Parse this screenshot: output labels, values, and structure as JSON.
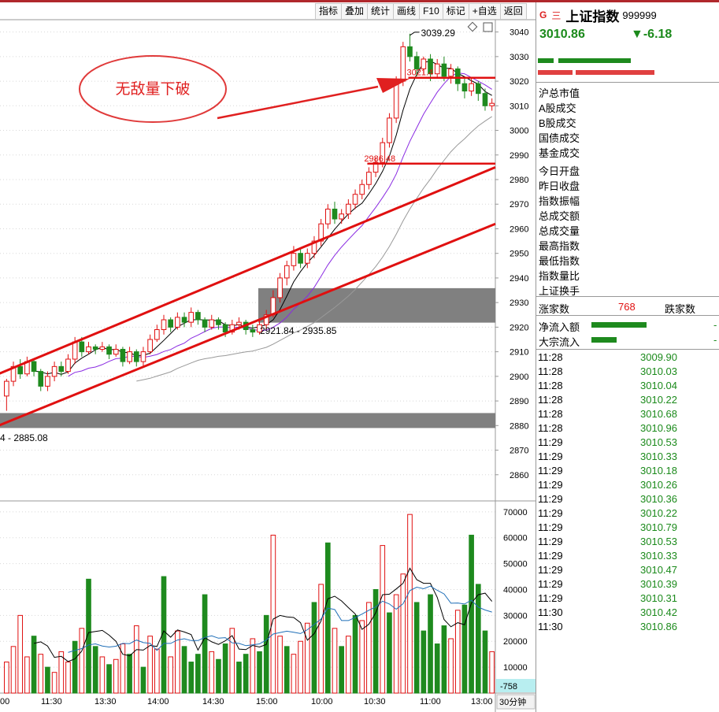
{
  "toolbar": {
    "indicator": "指标",
    "overlay": "叠加",
    "stats": "统计",
    "draw": "画线",
    "f10": "F10",
    "mark": "标记",
    "add_watchlist": "+自选",
    "back": "返回"
  },
  "colors": {
    "up": "#e01010",
    "down": "#1e8a1e",
    "line": "#e01010",
    "zone": "#808080"
  },
  "panel": {
    "g_icon": "G",
    "menu_icon": "三",
    "name": "上证指数",
    "code": "999999",
    "price": "3010.86",
    "change": "▼-6.18",
    "labels": [
      "沪总市值",
      "A股成交",
      "B股成交",
      "国债成交",
      "基金成交",
      "今日开盘",
      "昨日收盘",
      "指数振幅",
      "总成交额",
      "总成交量",
      "最高指数",
      "最低指数",
      "指数量比",
      "上证换手"
    ],
    "rise_label": "涨家数",
    "rise_value": "768",
    "fall_label": "跌家数",
    "net_inflow_label": "净流入额",
    "net_inflow_value": "-",
    "block_flow_label": "大宗流入",
    "block_flow_value": "-",
    "ticks": [
      {
        "time": "11:28",
        "price": "3009.90"
      },
      {
        "time": "11:28",
        "price": "3010.03"
      },
      {
        "time": "11:28",
        "price": "3010.04"
      },
      {
        "time": "11:28",
        "price": "3010.22"
      },
      {
        "time": "11:28",
        "price": "3010.68"
      },
      {
        "time": "11:28",
        "price": "3010.96"
      },
      {
        "time": "11:29",
        "price": "3010.53"
      },
      {
        "time": "11:29",
        "price": "3010.33"
      },
      {
        "time": "11:29",
        "price": "3010.18"
      },
      {
        "time": "11:29",
        "price": "3010.26"
      },
      {
        "time": "11:29",
        "price": "3010.36"
      },
      {
        "time": "11:29",
        "price": "3010.22"
      },
      {
        "time": "11:29",
        "price": "3010.79"
      },
      {
        "time": "11:29",
        "price": "3010.53"
      },
      {
        "time": "11:29",
        "price": "3010.33"
      },
      {
        "time": "11:29",
        "price": "3010.47"
      },
      {
        "time": "11:29",
        "price": "3010.39"
      },
      {
        "time": "11:29",
        "price": "3010.31"
      },
      {
        "time": "11:30",
        "price": "3010.42"
      },
      {
        "time": "11:30",
        "price": "3010.86"
      }
    ]
  },
  "chart_data": {
    "type": "candlestick",
    "period_label": "30分钟",
    "price_axis": {
      "ylim": [
        2850,
        3045
      ],
      "ticks": [
        2860,
        2870,
        2880,
        2890,
        2900,
        2910,
        2920,
        2930,
        2940,
        2950,
        2960,
        2970,
        2980,
        2990,
        3000,
        3010,
        3020,
        3030,
        3040
      ]
    },
    "volume_axis": {
      "ylim": [
        0,
        73000
      ],
      "ticks": [
        10000,
        20000,
        30000,
        40000,
        50000,
        60000,
        70000
      ],
      "readout": "-758"
    },
    "x_labels": [
      "00",
      "11:30",
      "13:30",
      "14:00",
      "14:30",
      "15:00",
      "10:00",
      "10:30",
      "11:00",
      "13:00"
    ],
    "annotations": {
      "callout": "无敌量下破",
      "high_label": "3039.29",
      "zone_upper_label": "2921.84 - 2935.85",
      "zone_lower_label": "4 - 2885.08",
      "level_3021": "3021.4",
      "level_2986": "2986.48"
    },
    "zones": [
      [
        2921.84,
        2935.85
      ],
      [
        2879,
        2885.08
      ]
    ],
    "levels": [
      3021.4,
      2986.48
    ],
    "channel_upper": [
      [
        0,
        2901
      ],
      [
        72,
        2985
      ]
    ],
    "channel_middle": [
      [
        0,
        2880
      ],
      [
        72,
        2962
      ]
    ],
    "candles": [
      [
        2892,
        2898,
        2886,
        2899
      ],
      [
        2898,
        2904,
        2896,
        2906
      ],
      [
        2904,
        2901,
        2899,
        2907
      ],
      [
        2901,
        2906,
        2900,
        2908
      ],
      [
        2906,
        2902,
        2900,
        2907
      ],
      [
        2902,
        2896,
        2894,
        2903
      ],
      [
        2896,
        2900,
        2894,
        2902
      ],
      [
        2900,
        2904,
        2898,
        2906
      ],
      [
        2904,
        2902,
        2900,
        2906
      ],
      [
        2902,
        2907,
        2901,
        2909
      ],
      [
        2907,
        2914,
        2905,
        2916
      ],
      [
        2914,
        2910,
        2908,
        2916
      ],
      [
        2910,
        2912,
        2909,
        2914
      ],
      [
        2912,
        2911,
        2909,
        2913
      ],
      [
        2911,
        2912,
        2910,
        2914
      ],
      [
        2912,
        2909,
        2907,
        2913
      ],
      [
        2909,
        2911,
        2908,
        2913
      ],
      [
        2911,
        2906,
        2904,
        2912
      ],
      [
        2906,
        2910,
        2905,
        2912
      ],
      [
        2910,
        2906,
        2904,
        2911
      ],
      [
        2906,
        2910,
        2904,
        2912
      ],
      [
        2910,
        2915,
        2909,
        2917
      ],
      [
        2915,
        2919,
        2914,
        2921
      ],
      [
        2919,
        2923,
        2917,
        2925
      ],
      [
        2923,
        2920,
        2918,
        2924
      ],
      [
        2920,
        2924,
        2919,
        2926
      ],
      [
        2924,
        2922,
        2920,
        2926
      ],
      [
        2922,
        2926,
        2920,
        2928
      ],
      [
        2926,
        2923,
        2921,
        2927
      ],
      [
        2923,
        2920,
        2918,
        2924
      ],
      [
        2920,
        2923,
        2919,
        2925
      ],
      [
        2923,
        2921,
        2919,
        2924
      ],
      [
        2921,
        2918,
        2916,
        2922
      ],
      [
        2918,
        2921,
        2917,
        2923
      ],
      [
        2921,
        2922,
        2919,
        2924
      ],
      [
        2922,
        2919,
        2917,
        2923
      ],
      [
        2919,
        2918,
        2916,
        2921
      ],
      [
        2918,
        2921,
        2917,
        2923
      ],
      [
        2921,
        2925,
        2919,
        2927
      ],
      [
        2925,
        2932,
        2924,
        2935
      ],
      [
        2932,
        2940,
        2930,
        2942
      ],
      [
        2940,
        2945,
        2937,
        2947
      ],
      [
        2945,
        2950,
        2943,
        2953
      ],
      [
        2950,
        2946,
        2944,
        2952
      ],
      [
        2946,
        2950,
        2944,
        2952
      ],
      [
        2950,
        2955,
        2948,
        2957
      ],
      [
        2955,
        2962,
        2953,
        2964
      ],
      [
        2962,
        2968,
        2960,
        2970
      ],
      [
        2968,
        2964,
        2962,
        2971
      ],
      [
        2964,
        2966,
        2962,
        2968
      ],
      [
        2966,
        2970,
        2964,
        2972
      ],
      [
        2970,
        2974,
        2968,
        2976
      ],
      [
        2974,
        2978,
        2972,
        2980
      ],
      [
        2978,
        2983,
        2976,
        2985
      ],
      [
        2983,
        2987,
        2981,
        2989
      ],
      [
        2987,
        2995,
        2985,
        2997
      ],
      [
        2995,
        3005,
        2993,
        3007
      ],
      [
        3005,
        3020,
        3003,
        3022
      ],
      [
        3020,
        3034,
        3018,
        3036
      ],
      [
        3034,
        3030,
        3028,
        3039.29
      ],
      [
        3030,
        3025,
        3022,
        3032
      ],
      [
        3025,
        3029,
        3023,
        3030
      ],
      [
        3029,
        3023,
        3020,
        3031
      ],
      [
        3023,
        3027,
        3021,
        3029
      ],
      [
        3027,
        3022,
        3020,
        3030
      ],
      [
        3022,
        3025,
        3019,
        3027
      ],
      [
        3025,
        3019,
        3016,
        3026
      ],
      [
        3019,
        3016,
        3013,
        3021
      ],
      [
        3016,
        3019,
        3014,
        3021
      ],
      [
        3019,
        3015,
        3012,
        3020
      ],
      [
        3015,
        3010,
        3008,
        3017
      ],
      [
        3010,
        3011,
        3008,
        3013
      ]
    ],
    "volumes": [
      [
        12000,
        "up"
      ],
      [
        18000,
        "up"
      ],
      [
        30000,
        "up"
      ],
      [
        14000,
        "up"
      ],
      [
        22000,
        "down"
      ],
      [
        15000,
        "up"
      ],
      [
        10000,
        "down"
      ],
      [
        8000,
        "up"
      ],
      [
        16000,
        "up"
      ],
      [
        12000,
        "up"
      ],
      [
        20000,
        "down"
      ],
      [
        25000,
        "up"
      ],
      [
        44000,
        "down"
      ],
      [
        18000,
        "down"
      ],
      [
        14000,
        "up"
      ],
      [
        11000,
        "down"
      ],
      [
        13000,
        "up"
      ],
      [
        19000,
        "up"
      ],
      [
        15000,
        "down"
      ],
      [
        26000,
        "up"
      ],
      [
        10000,
        "down"
      ],
      [
        22000,
        "up"
      ],
      [
        17000,
        "up"
      ],
      [
        45000,
        "down"
      ],
      [
        14000,
        "up"
      ],
      [
        24000,
        "up"
      ],
      [
        18000,
        "down"
      ],
      [
        12000,
        "down"
      ],
      [
        15000,
        "down"
      ],
      [
        38000,
        "down"
      ],
      [
        16000,
        "up"
      ],
      [
        13000,
        "down"
      ],
      [
        19000,
        "down"
      ],
      [
        25000,
        "up"
      ],
      [
        12000,
        "down"
      ],
      [
        15000,
        "down"
      ],
      [
        21000,
        "up"
      ],
      [
        16000,
        "down"
      ],
      [
        30000,
        "down"
      ],
      [
        61000,
        "up"
      ],
      [
        22000,
        "up"
      ],
      [
        18000,
        "down"
      ],
      [
        15000,
        "up"
      ],
      [
        20000,
        "up"
      ],
      [
        27000,
        "up"
      ],
      [
        35000,
        "down"
      ],
      [
        42000,
        "up"
      ],
      [
        58000,
        "down"
      ],
      [
        25000,
        "up"
      ],
      [
        18000,
        "down"
      ],
      [
        22000,
        "up"
      ],
      [
        30000,
        "down"
      ],
      [
        28000,
        "up"
      ],
      [
        35000,
        "up"
      ],
      [
        40000,
        "down"
      ],
      [
        57000,
        "up"
      ],
      [
        31000,
        "down"
      ],
      [
        38000,
        "up"
      ],
      [
        46000,
        "up"
      ],
      [
        69000,
        "up"
      ],
      [
        35000,
        "down"
      ],
      [
        24000,
        "down"
      ],
      [
        38000,
        "down"
      ],
      [
        19000,
        "down"
      ],
      [
        26000,
        "down"
      ],
      [
        21000,
        "up"
      ],
      [
        32000,
        "up"
      ],
      [
        34000,
        "down"
      ],
      [
        61000,
        "down"
      ],
      [
        42000,
        "down"
      ],
      [
        24000,
        "down"
      ],
      [
        16000,
        "up"
      ]
    ]
  }
}
